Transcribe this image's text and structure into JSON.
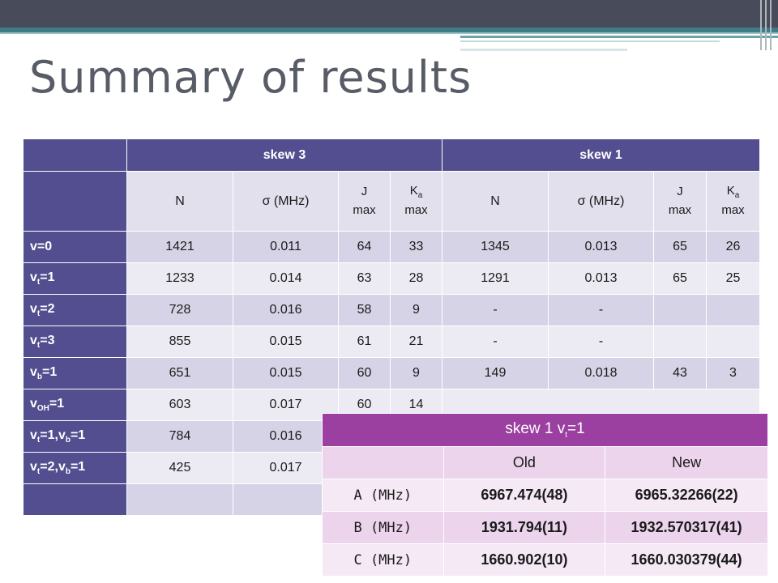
{
  "title": "Summary of results",
  "main_table": {
    "groups": [
      "skew 3",
      "skew 1"
    ],
    "columns": [
      "N",
      "σ (MHz)",
      "J max",
      "Ka max",
      "N",
      "σ (MHz)",
      "J max",
      "Ka max"
    ],
    "rows": [
      {
        "label": "v=0",
        "cells": [
          "1421",
          "0.011",
          "64",
          "33",
          "1345",
          "0.013",
          "65",
          "26"
        ]
      },
      {
        "label": "vt=1",
        "cells": [
          "1233",
          "0.014",
          "63",
          "28",
          "1291",
          "0.013",
          "65",
          "25"
        ]
      },
      {
        "label": "vt=2",
        "cells": [
          "728",
          "0.016",
          "58",
          "9",
          "-",
          "-",
          "",
          ""
        ]
      },
      {
        "label": "vt=3",
        "cells": [
          "855",
          "0.015",
          "61",
          "21",
          "-",
          "-",
          "",
          ""
        ]
      },
      {
        "label": "vb=1",
        "cells": [
          "651",
          "0.015",
          "60",
          "9",
          "149",
          "0.018",
          "43",
          "3"
        ]
      },
      {
        "label": "vOH=1",
        "cells": [
          "603",
          "0.017",
          "60",
          "14"
        ]
      },
      {
        "label": "vt=1,vb=1",
        "cells": [
          "784",
          "0.016"
        ]
      },
      {
        "label": "vt=2,vb=1",
        "cells": [
          "425",
          "0.017"
        ]
      }
    ]
  },
  "inset_table": {
    "title": "skew 1 vt=1",
    "columns": [
      "",
      "Old",
      "New"
    ],
    "rows": [
      {
        "label": "A (MHz)",
        "old": "6967.474(48)",
        "new": "6965.32266(22)"
      },
      {
        "label": "B (MHz)",
        "old": "1931.794(11)",
        "new": "1932.570317(41)"
      },
      {
        "label": "C (MHz)",
        "old": "1660.902(10)",
        "new": "1660.030379(44)"
      }
    ]
  }
}
